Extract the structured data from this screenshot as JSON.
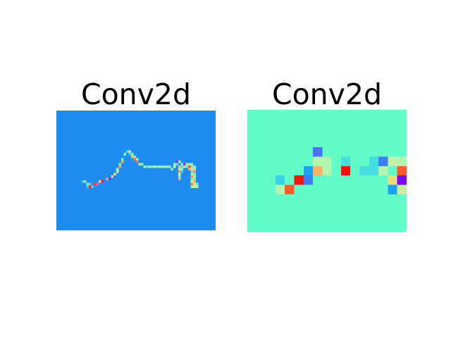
{
  "figure": {
    "panels": [
      {
        "title": "Conv2d",
        "background": "#1e8cf0",
        "grid": {
          "cols": 64,
          "rows": 48
        },
        "cells": [
          [
            10,
            28,
            "#3cc8e6"
          ],
          [
            11,
            28,
            "#8ef2c0"
          ],
          [
            12,
            29,
            "#8ef2c0"
          ],
          [
            13,
            29,
            "#5ac8f0"
          ],
          [
            12,
            30,
            "#2fc8e6"
          ],
          [
            13,
            30,
            "#ff2020"
          ],
          [
            14,
            30,
            "#5ad0e8"
          ],
          [
            15,
            29,
            "#ff3a10"
          ],
          [
            16,
            29,
            "#ff50c8"
          ],
          [
            17,
            28,
            "#e6e680"
          ],
          [
            18,
            28,
            "#ff1040"
          ],
          [
            19,
            28,
            "#3080ff"
          ],
          [
            20,
            27,
            "#ffb070"
          ],
          [
            21,
            27,
            "#6a30ff"
          ],
          [
            22,
            26,
            "#ffd080"
          ],
          [
            23,
            26,
            "#3080ff"
          ],
          [
            23,
            25,
            "#e0e070"
          ],
          [
            24,
            24,
            "#c8ff90"
          ],
          [
            24,
            23,
            "#b4f0b0"
          ],
          [
            25,
            22,
            "#ff9a30"
          ],
          [
            25,
            21,
            "#90f0b0"
          ],
          [
            26,
            20,
            "#ffb040"
          ],
          [
            26,
            19,
            "#7af0c8"
          ],
          [
            27,
            17,
            "#80ffb0"
          ],
          [
            28,
            16,
            "#5ce0e0"
          ],
          [
            29,
            16,
            "#b0f0a0"
          ],
          [
            29,
            17,
            "#40c8f0"
          ],
          [
            30,
            17,
            "#90f0b0"
          ],
          [
            30,
            18,
            "#ffc060"
          ],
          [
            31,
            18,
            "#80f0c0"
          ],
          [
            31,
            19,
            "#ff6a30"
          ],
          [
            32,
            19,
            "#b0f0a0"
          ],
          [
            32,
            20,
            "#ff6060"
          ],
          [
            33,
            21,
            "#b4f0a0"
          ],
          [
            34,
            21,
            "#80f0c0"
          ],
          [
            35,
            22,
            "#b0f0a0"
          ],
          [
            36,
            22,
            "#5ce0e0"
          ],
          [
            37,
            22,
            "#b0f0a0"
          ],
          [
            38,
            22,
            "#80f0c0"
          ],
          [
            39,
            22,
            "#b0f0a0"
          ],
          [
            40,
            22,
            "#80f0c0"
          ],
          [
            41,
            22,
            "#b0f0a0"
          ],
          [
            42,
            22,
            "#80f0c0"
          ],
          [
            43,
            22,
            "#b0f0a0"
          ],
          [
            44,
            22,
            "#80f0c0"
          ],
          [
            45,
            22,
            "#b0f0a0"
          ],
          [
            46,
            23,
            "#8ef0c0"
          ],
          [
            47,
            22,
            "#c0ff90"
          ],
          [
            47,
            21,
            "#80f0c0"
          ],
          [
            48,
            20,
            "#8a2bff"
          ],
          [
            48,
            21,
            "#5ce0e0"
          ],
          [
            49,
            20,
            "#b0f0a0"
          ],
          [
            49,
            22,
            "#ffb070"
          ],
          [
            49,
            23,
            "#b0f0a0"
          ],
          [
            50,
            21,
            "#80f0c0"
          ],
          [
            50,
            22,
            "#5ce0e0"
          ],
          [
            50,
            23,
            "#8ef0c0"
          ],
          [
            50,
            24,
            "#40c8f0"
          ],
          [
            49,
            24,
            "#ff9040"
          ],
          [
            49,
            25,
            "#c0ff90"
          ],
          [
            49,
            26,
            "#80f0c0"
          ],
          [
            49,
            27,
            "#ffb070"
          ],
          [
            51,
            22,
            "#b0f0a0"
          ],
          [
            51,
            21,
            "#8a2bff"
          ],
          [
            52,
            22,
            "#80f0c0"
          ],
          [
            52,
            21,
            "#b0f0a0"
          ],
          [
            53,
            22,
            "#ff5030"
          ],
          [
            53,
            21,
            "#80f0c0"
          ],
          [
            53,
            23,
            "#ffb070"
          ],
          [
            54,
            22,
            "#80f0c0"
          ],
          [
            54,
            21,
            "#b0f0a0"
          ],
          [
            55,
            22,
            "#8ef0c0"
          ],
          [
            54,
            23,
            "#ffd090"
          ],
          [
            54,
            24,
            "#5ce0e0"
          ],
          [
            54,
            25,
            "#b0f0a0"
          ],
          [
            54,
            26,
            "#ff9060"
          ],
          [
            54,
            27,
            "#80f0c0"
          ],
          [
            54,
            28,
            "#c0ff90"
          ],
          [
            54,
            29,
            "#ff8060"
          ],
          [
            54,
            30,
            "#b0f0a0"
          ],
          [
            55,
            23,
            "#b0f0a0"
          ],
          [
            55,
            24,
            "#ff8080"
          ],
          [
            55,
            25,
            "#80f0c0"
          ],
          [
            55,
            26,
            "#b0f0a0"
          ],
          [
            55,
            27,
            "#80f0c0"
          ],
          [
            55,
            28,
            "#ffb070"
          ],
          [
            55,
            29,
            "#b0f0a0"
          ],
          [
            56,
            29,
            "#80f0c0"
          ],
          [
            56,
            30,
            "#b0f0a0"
          ],
          [
            55,
            30,
            "#c0ff90"
          ]
        ]
      },
      {
        "title": "Conv2d",
        "background": "#62fcc8",
        "grid": {
          "cols": 17,
          "rows": 13
        },
        "cells": [
          [
            7,
            4,
            "#4b6fff"
          ],
          [
            7,
            5,
            "#b3f5ac"
          ],
          [
            8,
            5,
            "#b3f5ac"
          ],
          [
            10,
            5,
            "#45dde0"
          ],
          [
            13,
            5,
            "#45dde0"
          ],
          [
            14,
            5,
            "#3a7df7"
          ],
          [
            15,
            5,
            "#c0f0a8"
          ],
          [
            16,
            5,
            "#b3f5ac"
          ],
          [
            6,
            6,
            "#1aa3f0"
          ],
          [
            7,
            6,
            "#f7b26a"
          ],
          [
            8,
            6,
            "#b3f5ac"
          ],
          [
            10,
            6,
            "#ff0a0a"
          ],
          [
            12,
            6,
            "#45dde0"
          ],
          [
            13,
            6,
            "#45dde0"
          ],
          [
            14,
            6,
            "#b3f5ac"
          ],
          [
            16,
            6,
            "#ff5a2a"
          ],
          [
            3,
            7,
            "#3ad0e6"
          ],
          [
            5,
            7,
            "#ff1010"
          ],
          [
            6,
            7,
            "#3a7df7"
          ],
          [
            15,
            7,
            "#e6e07a"
          ],
          [
            16,
            7,
            "#7a0aff"
          ],
          [
            17,
            7,
            "#c7f0a0"
          ],
          [
            3,
            8,
            "#b3f5ac"
          ],
          [
            4,
            8,
            "#ff5a2a"
          ],
          [
            15,
            8,
            "#1aa3f0"
          ],
          [
            16,
            8,
            "#c7f0a0"
          ]
        ]
      }
    ]
  }
}
